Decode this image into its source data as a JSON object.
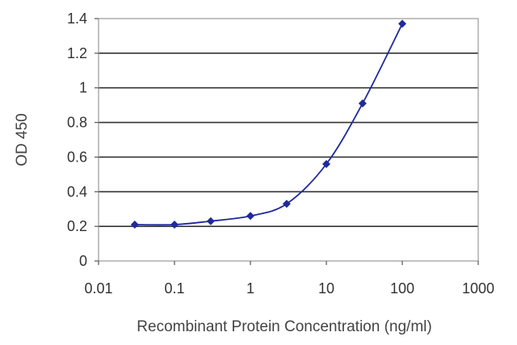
{
  "chart_data": {
    "type": "line",
    "xlabel": "Recombinant Protein Concentration (ng/ml)",
    "ylabel": "OD 450",
    "x_scale": "log",
    "xlim": [
      0.01,
      1000
    ],
    "ylim": [
      0,
      1.4
    ],
    "x_ticks": [
      0.01,
      0.1,
      1,
      10,
      100,
      1000
    ],
    "x_tick_labels": [
      "0.01",
      "0.1",
      "1",
      "10",
      "100",
      "1000"
    ],
    "y_ticks": [
      0,
      0.2,
      0.4,
      0.6,
      0.8,
      1,
      1.2,
      1.4
    ],
    "y_tick_labels": [
      "0",
      "0.2",
      "0.4",
      "0.6",
      "0.8",
      "1",
      "1.2",
      "1.4"
    ],
    "grid": "horizontal",
    "series": [
      {
        "x": [
          0.03,
          0.1,
          0.3,
          1,
          3,
          10,
          30,
          100
        ],
        "y": [
          0.21,
          0.21,
          0.23,
          0.26,
          0.33,
          0.56,
          0.91,
          1.37
        ]
      }
    ],
    "colors": {
      "series": "#1f2a9c",
      "grid": "#333333",
      "frame": "#9a9a9a"
    }
  }
}
